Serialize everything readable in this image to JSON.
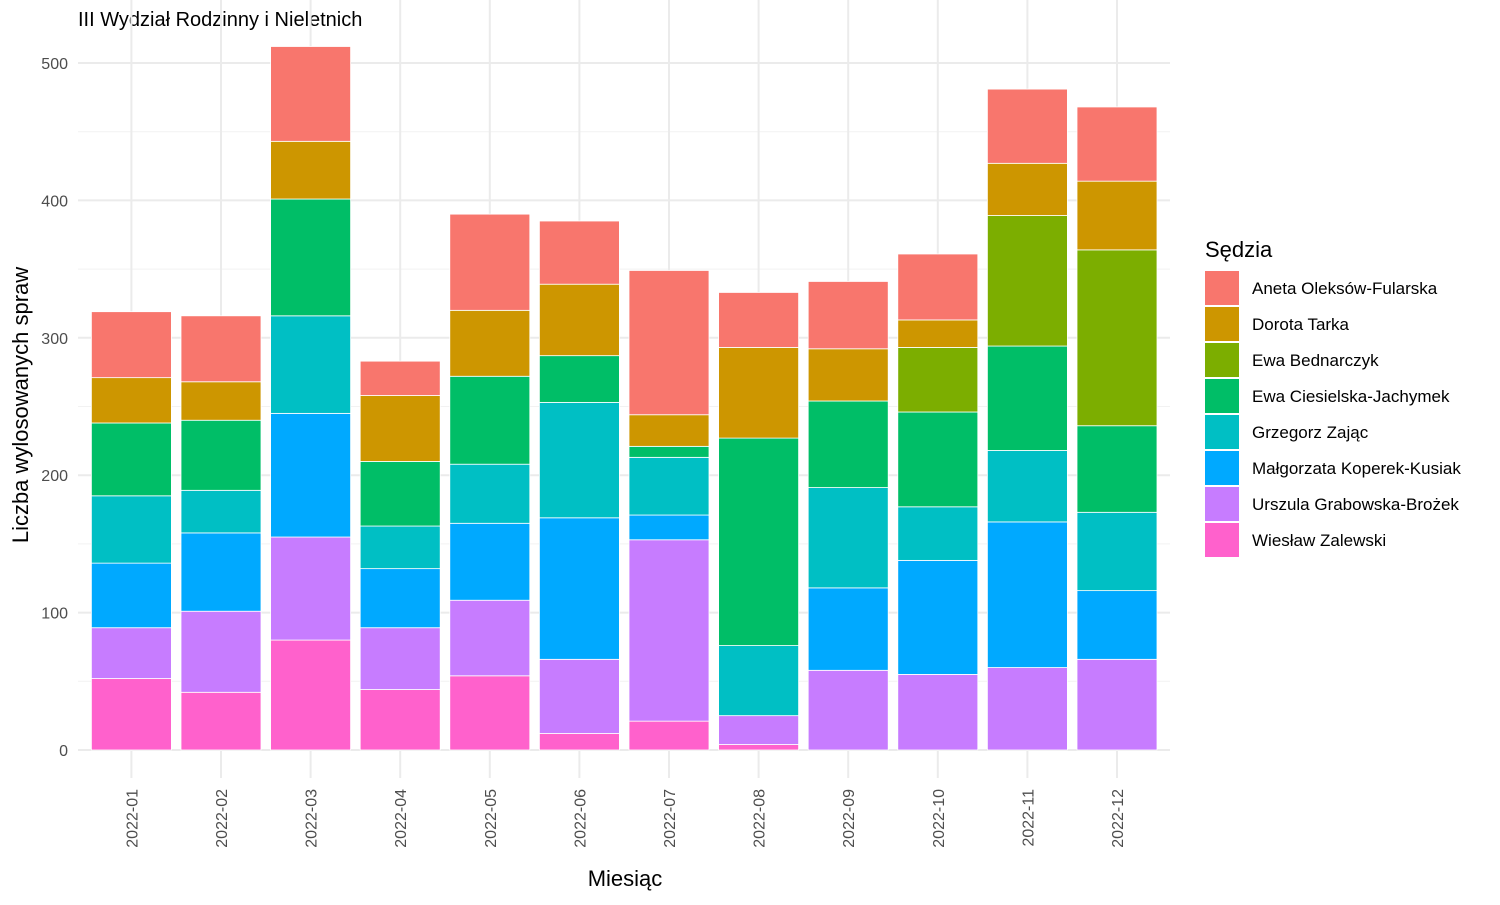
{
  "chart_data": {
    "type": "bar",
    "stacked": true,
    "title": "III Wydział Rodzinny i Nieletnich",
    "xlabel": "Miesiąc",
    "ylabel": "Liczba wylosowanych spraw",
    "ylim": [
      0,
      520
    ],
    "yticks": [
      0,
      100,
      200,
      300,
      400,
      500
    ],
    "grid": true,
    "legend": {
      "title": "Sędzia",
      "position": "right"
    },
    "categories": [
      "2022-01",
      "2022-02",
      "2022-03",
      "2022-04",
      "2022-05",
      "2022-06",
      "2022-07",
      "2022-08",
      "2022-09",
      "2022-10",
      "2022-11",
      "2022-12"
    ],
    "series": [
      {
        "name": "Wiesław Zalewski",
        "color": "#FF61CC",
        "values": [
          52,
          42,
          80,
          44,
          54,
          12,
          21,
          4,
          0,
          0,
          0,
          0
        ]
      },
      {
        "name": "Urszula Grabowska-Brożek",
        "color": "#C77CFF",
        "values": [
          37,
          59,
          75,
          45,
          55,
          54,
          132,
          21,
          58,
          55,
          60,
          66
        ]
      },
      {
        "name": "Małgorzata Koperek-Kusiak",
        "color": "#00A9FF",
        "values": [
          47,
          57,
          90,
          43,
          56,
          103,
          18,
          0,
          60,
          83,
          106,
          50
        ]
      },
      {
        "name": "Grzegorz Zając",
        "color": "#00BFC4",
        "values": [
          49,
          31,
          71,
          31,
          43,
          84,
          42,
          51,
          73,
          39,
          52,
          57
        ]
      },
      {
        "name": "Ewa Ciesielska-Jachymek",
        "color": "#00BE67",
        "values": [
          53,
          51,
          85,
          47,
          64,
          34,
          8,
          151,
          63,
          69,
          76,
          63
        ]
      },
      {
        "name": "Ewa Bednarczyk",
        "color": "#7CAE00",
        "values": [
          0,
          0,
          0,
          0,
          0,
          0,
          0,
          0,
          0,
          47,
          95,
          128
        ]
      },
      {
        "name": "Dorota Tarka",
        "color": "#CD9600",
        "values": [
          33,
          28,
          42,
          48,
          48,
          52,
          23,
          66,
          38,
          20,
          38,
          50
        ]
      },
      {
        "name": "Aneta Oleksów-Fularska",
        "color": "#F8766D",
        "values": [
          48,
          48,
          69,
          25,
          70,
          46,
          105,
          40,
          49,
          48,
          54,
          54
        ]
      }
    ]
  }
}
